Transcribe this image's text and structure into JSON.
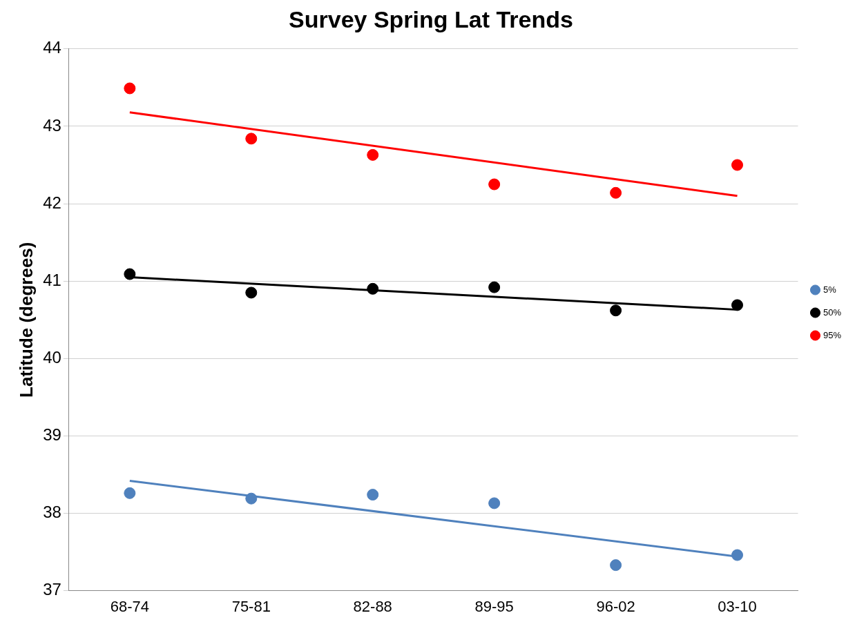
{
  "chart_data": {
    "type": "scatter",
    "title": "Survey Spring Lat Trends",
    "ylabel": "Latitude (degrees)",
    "categories": [
      "68-74",
      "75-81",
      "82-88",
      "89-95",
      "96-02",
      "03-10"
    ],
    "ylim": [
      37,
      44
    ],
    "yticks": [
      37,
      38,
      39,
      40,
      41,
      42,
      43,
      44
    ],
    "grid": "y",
    "legend": "right",
    "series": [
      {
        "name": "5%",
        "color": "#4f81bd",
        "marker": "circle",
        "x": [
          "68-74",
          "75-81",
          "82-88",
          "89-95",
          "96-02",
          "03-10"
        ],
        "values": [
          38.26,
          38.19,
          38.24,
          38.13,
          37.33,
          37.46
        ]
      },
      {
        "name": "50%",
        "color": "#000000",
        "marker": "circle",
        "x": [
          "68-74",
          "75-81",
          "82-88",
          "89-95",
          "96-02",
          "03-10"
        ],
        "values": [
          41.09,
          40.85,
          40.9,
          40.92,
          40.62,
          40.69
        ]
      },
      {
        "name": "95%",
        "color": "#ff0000",
        "marker": "circle",
        "x": [
          "68-74",
          "75-81",
          "82-88",
          "89-95",
          "96-02",
          "03-10"
        ],
        "values": [
          43.49,
          42.84,
          42.63,
          42.25,
          42.14,
          42.5
        ]
      },
      {
        "type": "line",
        "color": "#4f81bd",
        "marker": "none",
        "x": [
          "68-74",
          "03-10"
        ],
        "values": [
          38.42,
          37.44
        ]
      },
      {
        "type": "line",
        "color": "#000000",
        "marker": "none",
        "x": [
          "68-74",
          "03-10"
        ],
        "values": [
          41.05,
          40.63
        ]
      },
      {
        "type": "line",
        "color": "#ff0000",
        "marker": "none",
        "x": [
          "68-74",
          "03-10"
        ],
        "values": [
          43.18,
          42.1
        ]
      }
    ]
  }
}
